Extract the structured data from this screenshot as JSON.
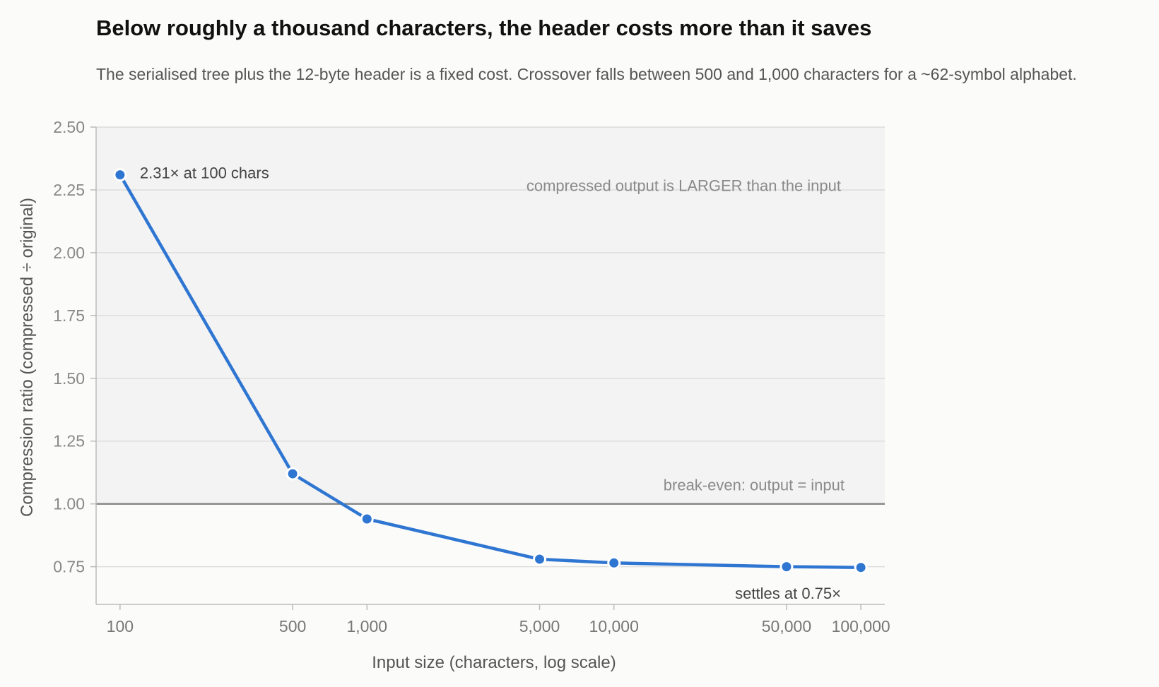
{
  "chart_data": {
    "type": "line",
    "title": "Below roughly a thousand characters, the header costs more than it saves",
    "subtitle": "The serialised tree plus the 12-byte header is a fixed cost. Crossover falls between 500 and 1,000 characters for a ~62-symbol alphabet.",
    "xlabel": "Input size (characters, log scale)",
    "ylabel": "Compression ratio (compressed ÷ original)",
    "x_scale": "log",
    "xlim": [
      80,
      125000
    ],
    "ylim": [
      0.6,
      2.5
    ],
    "x_ticks": [
      100,
      500,
      1000,
      5000,
      10000,
      50000,
      100000
    ],
    "x_tick_labels": [
      "100",
      "500",
      "1,000",
      "5,000",
      "10,000",
      "50,000",
      "100,000"
    ],
    "y_ticks": [
      0.75,
      1.0,
      1.25,
      1.5,
      1.75,
      2.0,
      2.25,
      2.5
    ],
    "y_tick_labels": [
      "0.75",
      "1.00",
      "1.25",
      "1.50",
      "1.75",
      "2.00",
      "2.25",
      "2.50"
    ],
    "grid": true,
    "series": [
      {
        "x": [
          100,
          500,
          1000,
          5000,
          10000,
          50000,
          100000
        ],
        "y": [
          2.31,
          1.12,
          0.94,
          0.78,
          0.765,
          0.75,
          0.747
        ]
      }
    ],
    "shaded_region": {
      "y_from": 1.0,
      "y_to": 2.5,
      "label": "compressed output is LARGER than the input"
    },
    "reference_line": {
      "y": 1.0,
      "label": "break-even: output = input"
    },
    "annotations": {
      "start": "2.31× at 100 chars",
      "end": "settles at 0.75×"
    },
    "colors": {
      "line": "#2f76d2",
      "shade": "#f3f3f3",
      "grid": "#dddddd",
      "reference": "#888888",
      "axis": "#bbbbbb"
    }
  }
}
